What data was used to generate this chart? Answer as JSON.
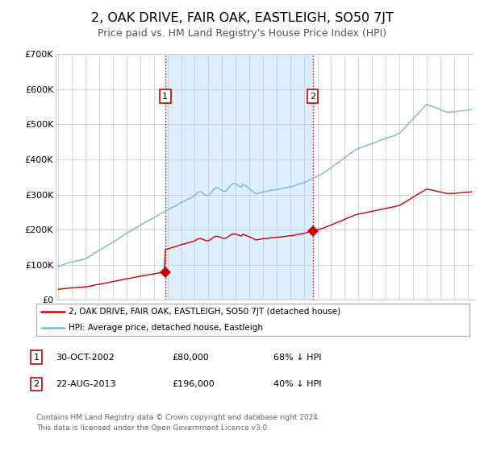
{
  "title": "2, OAK DRIVE, FAIR OAK, EASTLEIGH, SO50 7JT",
  "subtitle": "Price paid vs. HM Land Registry's House Price Index (HPI)",
  "title_fontsize": 11.5,
  "subtitle_fontsize": 9,
  "background_color": "#ffffff",
  "grid_color": "#cccccc",
  "hpi_color": "#7ab4d8",
  "price_color": "#cc0000",
  "sale1_date": 2002.83,
  "sale1_price": 80000,
  "sale2_date": 2013.64,
  "sale2_price": 196000,
  "ylim": [
    0,
    700000
  ],
  "xlim": [
    1994.8,
    2025.5
  ],
  "yticks": [
    0,
    100000,
    200000,
    300000,
    400000,
    500000,
    600000,
    700000
  ],
  "ytick_labels": [
    "£0",
    "£100K",
    "£200K",
    "£300K",
    "£400K",
    "£500K",
    "£600K",
    "£700K"
  ],
  "legend_labels": [
    "2, OAK DRIVE, FAIR OAK, EASTLEIGH, SO50 7JT (detached house)",
    "HPI: Average price, detached house, Eastleigh"
  ],
  "table_row1": [
    "1",
    "30-OCT-2002",
    "£80,000",
    "68% ↓ HPI"
  ],
  "table_row2": [
    "2",
    "22-AUG-2013",
    "£196,000",
    "40% ↓ HPI"
  ],
  "footer_text": "Contains HM Land Registry data © Crown copyright and database right 2024.\nThis data is licensed under the Open Government Licence v3.0.",
  "shaded_region_color": "#ddeeff",
  "marker_color": "#cc0000",
  "sale_marker_size": 7
}
